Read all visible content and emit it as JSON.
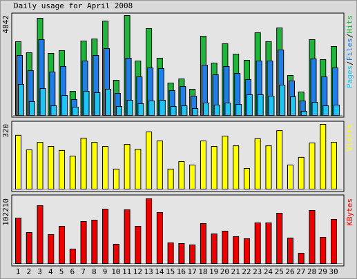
{
  "chart_data": [
    {
      "type": "bar",
      "title": "Daily usage for April 2008",
      "ylim": [
        0,
        4842
      ],
      "yticks": [
        4842
      ],
      "legend_separator": "/",
      "series": [
        {
          "name": "Hits",
          "color": "#1fb53a",
          "values": [
            3573,
            3039,
            4708,
            3005,
            3139,
            1169,
            3606,
            3707,
            4575,
            1703,
            4842,
            2638,
            4208,
            2772,
            1569,
            1770,
            1269,
            3840,
            2538,
            3473,
            2972,
            2671,
            4007,
            3573,
            4241,
            1937,
            1135,
            3673,
            2705,
            3339
          ]
        },
        {
          "name": "Files",
          "color": "#1f7fe6",
          "values": [
            2905,
            2171,
            3673,
            2104,
            2371,
            768,
            2638,
            2905,
            3239,
            1069,
            2772,
            1870,
            2304,
            2271,
            1202,
            1402,
            935,
            2438,
            1970,
            2371,
            2037,
            1736,
            2638,
            2638,
            3172,
            1670,
            701,
            2738,
            1870,
            2304
          ]
        },
        {
          "name": "Pages",
          "color": "#1ec4f2",
          "values": [
            1503,
            668,
            1302,
            467,
            968,
            401,
            1169,
            1102,
            1269,
            434,
            735,
            568,
            701,
            735,
            434,
            467,
            334,
            601,
            501,
            601,
            534,
            1002,
            1002,
            935,
            1469,
            902,
            200,
            634,
            467,
            501
          ]
        }
      ]
    },
    {
      "type": "bar",
      "ylim": [
        0,
        320
      ],
      "yticks": [
        320
      ],
      "series": [
        {
          "name": "Visits",
          "color": "#ffff00",
          "values": [
            266,
            194,
            231,
            211,
            191,
            163,
            252,
            231,
            211,
            99,
            221,
            197,
            283,
            238,
            99,
            136,
            119,
            238,
            211,
            262,
            214,
            102,
            249,
            214,
            289,
            119,
            157,
            228,
            320,
            231
          ]
        }
      ]
    },
    {
      "type": "bar",
      "ylim": [
        0,
        102210
      ],
      "yticks": [
        102210
      ],
      "categories": [
        "1",
        "2",
        "3",
        "4",
        "5",
        "6",
        "7",
        "8",
        "9",
        "10",
        "11",
        "12",
        "13",
        "14",
        "15",
        "16",
        "17",
        "18",
        "19",
        "20",
        "21",
        "22",
        "23",
        "24",
        "25",
        "26",
        "27",
        "28",
        "29",
        "30"
      ],
      "category_colors": [
        "#000000",
        "#000000",
        "#000000",
        "#000000",
        "#008000",
        "#008000",
        "#000000",
        "#000000",
        "#000000",
        "#000000",
        "#000000",
        "#008000",
        "#008000",
        "#000000",
        "#000000",
        "#000000",
        "#000000",
        "#000000",
        "#008000",
        "#008000",
        "#000000",
        "#000000",
        "#000000",
        "#000000",
        "#000000",
        "#008000",
        "#008000",
        "#000000",
        "#000000",
        "#000000"
      ],
      "series": [
        {
          "name": "KBytes",
          "color": "#ee0000",
          "values": [
            71765,
            48930,
            91337,
            45668,
            58717,
            22834,
            66328,
            68503,
            85900,
            30446,
            84812,
            58717,
            102210,
            80463,
            32620,
            31533,
            29358,
            63066,
            46755,
            51105,
            42406,
            39144,
            64153,
            64153,
            79376,
            40232,
            16310,
            83726,
            41319,
            69590
          ]
        }
      ]
    }
  ]
}
